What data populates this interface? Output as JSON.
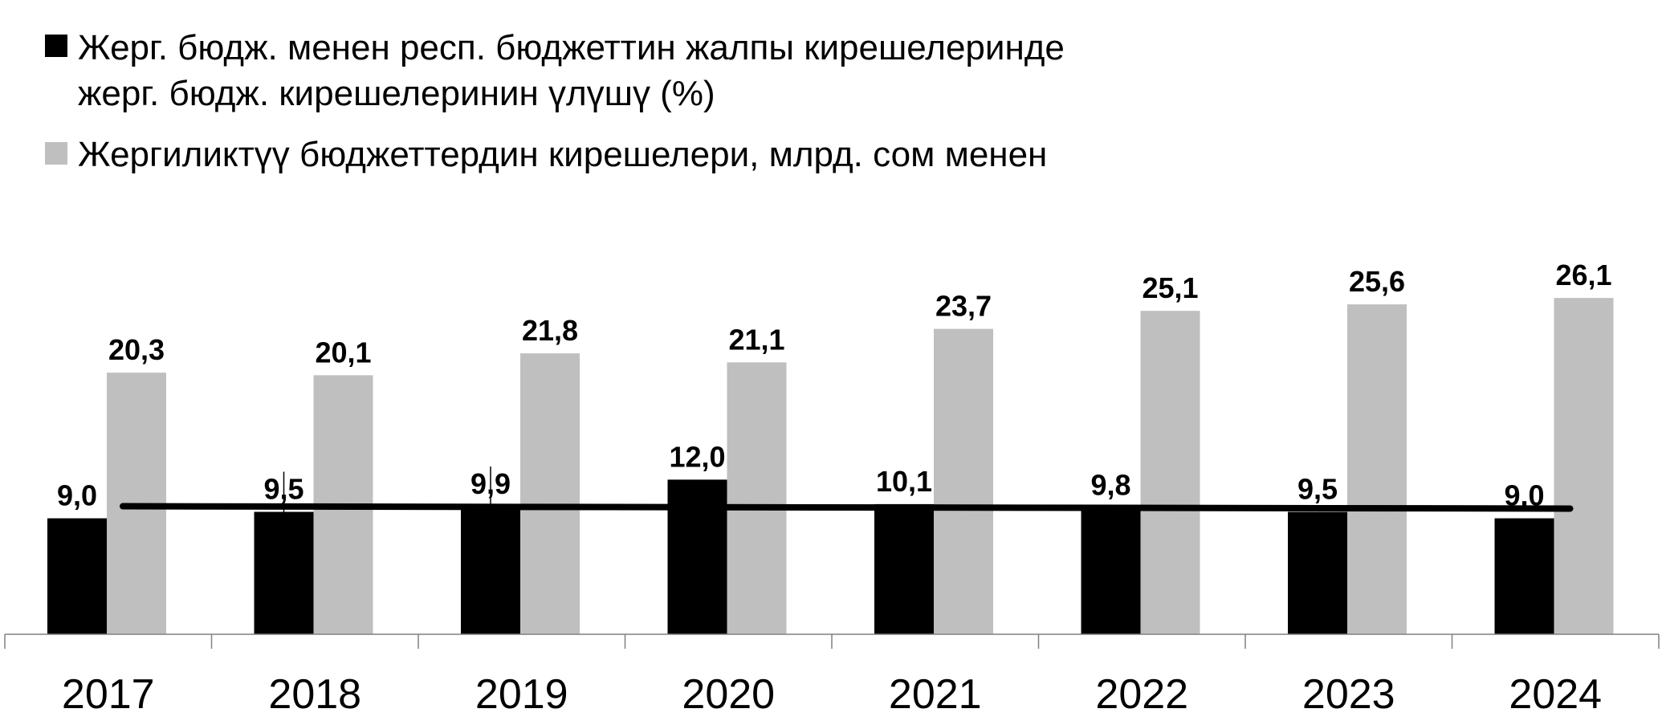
{
  "chart_data": {
    "type": "bar",
    "categories": [
      "2017",
      "2018",
      "2019",
      "2020",
      "2021",
      "2022",
      "2023",
      "2024"
    ],
    "series": [
      {
        "name": "Жерг. бюдж. менен респ. бюджеттин жалпы кирешелеринде жерг. бюдж. кирешелеринин үлүшү (%)",
        "name_lines": [
          "Жерг. бюдж. менен респ. бюджеттин жалпы кирешелеринде",
          "жерг. бюдж. кирешелеринин үлүшү (%)"
        ],
        "values": [
          9.0,
          9.5,
          9.9,
          12.0,
          10.1,
          9.8,
          9.5,
          9.0
        ],
        "labels": [
          "9,0",
          "9,5",
          "9,9",
          "12,0",
          "10,1",
          "9,8",
          "9,5",
          "9,0"
        ],
        "color": "#000000"
      },
      {
        "name": "Жергиликтүү бюджеттердин кирешелери, млрд. сом менен",
        "name_lines": [
          "Жергиликтүү бюджеттердин кирешелери, млрд. сом менен"
        ],
        "values": [
          20.3,
          20.1,
          21.8,
          21.1,
          23.7,
          25.1,
          25.6,
          26.1
        ],
        "labels": [
          "20,3",
          "20,1",
          "21,8",
          "21,1",
          "23,7",
          "25,1",
          "25,6",
          "26,1"
        ],
        "color": "#bfbfbf"
      }
    ],
    "trendline": {
      "series": 0,
      "kind": "linear",
      "color": "#000000"
    },
    "ylim": [
      0,
      31
    ],
    "legend_position": "top-left",
    "grid": false,
    "xlabel": "",
    "ylabel": ""
  }
}
